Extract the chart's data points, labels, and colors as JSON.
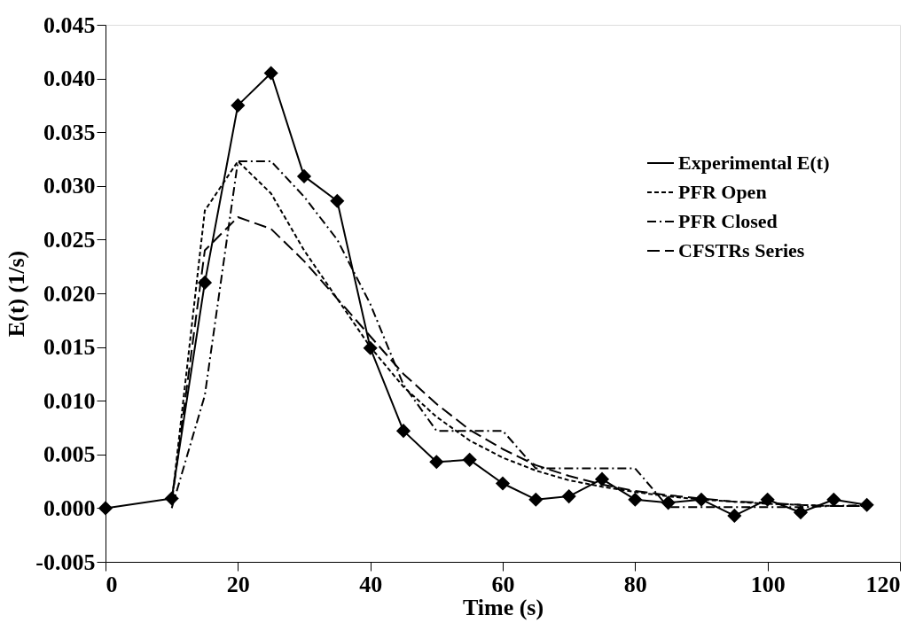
{
  "chart_data": {
    "type": "line",
    "xlabel": "Time (s)",
    "ylabel": "E(t) (1/s)",
    "xlim": [
      0,
      120
    ],
    "xticks": [
      0,
      20,
      40,
      60,
      80,
      100,
      120
    ],
    "ylim": [
      -0.005,
      0.045
    ],
    "yticks": [
      {
        "value": -0.005,
        "label": "-0.005"
      },
      {
        "value": 0,
        "label": "0.000"
      },
      {
        "value": 0.005,
        "label": "0.005"
      },
      {
        "value": 0.01,
        "label": "0.010"
      },
      {
        "value": 0.015,
        "label": "0.015"
      },
      {
        "value": 0.02,
        "label": "0.020"
      },
      {
        "value": 0.025,
        "label": "0.025"
      },
      {
        "value": 0.03,
        "label": "0.030"
      },
      {
        "value": 0.035,
        "label": "0.035"
      },
      {
        "value": 0.04,
        "label": "0.040"
      },
      {
        "value": 0.045,
        "label": "0.045"
      }
    ],
    "grid": false,
    "legend": "top right",
    "x": [
      0,
      10,
      15,
      20,
      25,
      30,
      35,
      40,
      45,
      50,
      55,
      60,
      65,
      70,
      75,
      80,
      85,
      90,
      95,
      100,
      105,
      110,
      115
    ],
    "series": [
      {
        "name": "Experimental E(t)",
        "color": "#000000",
        "marker": "diamond",
        "line_style": "solid",
        "values": [
          0,
          0.0009,
          0.021,
          0.0375,
          0.0405,
          0.0309,
          0.0286,
          0.0149,
          0.0072,
          0.0043,
          0.0045,
          0.0023,
          0.0008,
          0.0011,
          0.0027,
          0.0008,
          0.0005,
          0.0008,
          -0.0007,
          0.0008,
          -0.0004,
          0.0008,
          0.0003
        ]
      },
      {
        "name": "PFR Open",
        "color": "#000000",
        "marker": "none",
        "line_style": "dashed",
        "x": [
          10,
          15,
          20,
          25,
          30,
          35,
          40,
          45,
          50,
          55,
          60,
          65,
          70,
          75,
          80,
          85,
          90,
          95,
          100,
          105,
          110,
          115
        ],
        "values": [
          0.0005,
          0.0277,
          0.0323,
          0.0293,
          0.024,
          0.0195,
          0.015,
          0.0113,
          0.0085,
          0.0063,
          0.0047,
          0.0035,
          0.0026,
          0.002,
          0.0015,
          0.0011,
          0.0008,
          0.0006,
          0.0004,
          0.0003,
          0.0002,
          0.0002
        ]
      },
      {
        "name": "PFR Closed",
        "color": "#000000",
        "marker": "none",
        "line_style": "dashdot",
        "x": [
          10,
          15,
          20,
          25,
          30,
          35,
          40,
          45,
          50,
          55,
          60,
          65,
          70,
          75,
          80,
          85,
          90,
          95,
          100,
          105,
          110,
          115
        ],
        "values": [
          0,
          0.0105,
          0.0323,
          0.0323,
          0.029,
          0.025,
          0.019,
          0.0115,
          0.0072,
          0.0072,
          0.0072,
          0.0037,
          0.0037,
          0.0037,
          0.0037,
          0.0001,
          0.0001,
          0.0001,
          0.0001,
          0.0001,
          0.0002,
          0.0003
        ]
      },
      {
        "name": "CFSTRs Series",
        "color": "#000000",
        "marker": "none",
        "line_style": "longdash",
        "x": [
          10,
          15,
          20,
          25,
          30,
          35,
          40,
          45,
          50,
          55,
          60,
          65,
          70,
          75,
          80,
          85,
          90,
          95,
          100,
          105,
          110,
          115
        ],
        "values": [
          0.0005,
          0.024,
          0.0271,
          0.026,
          0.023,
          0.0195,
          0.016,
          0.0125,
          0.0097,
          0.0073,
          0.0055,
          0.004,
          0.003,
          0.0022,
          0.0016,
          0.0012,
          0.0009,
          0.0006,
          0.0005,
          0.0003,
          0.0002,
          0.0002
        ]
      }
    ]
  }
}
